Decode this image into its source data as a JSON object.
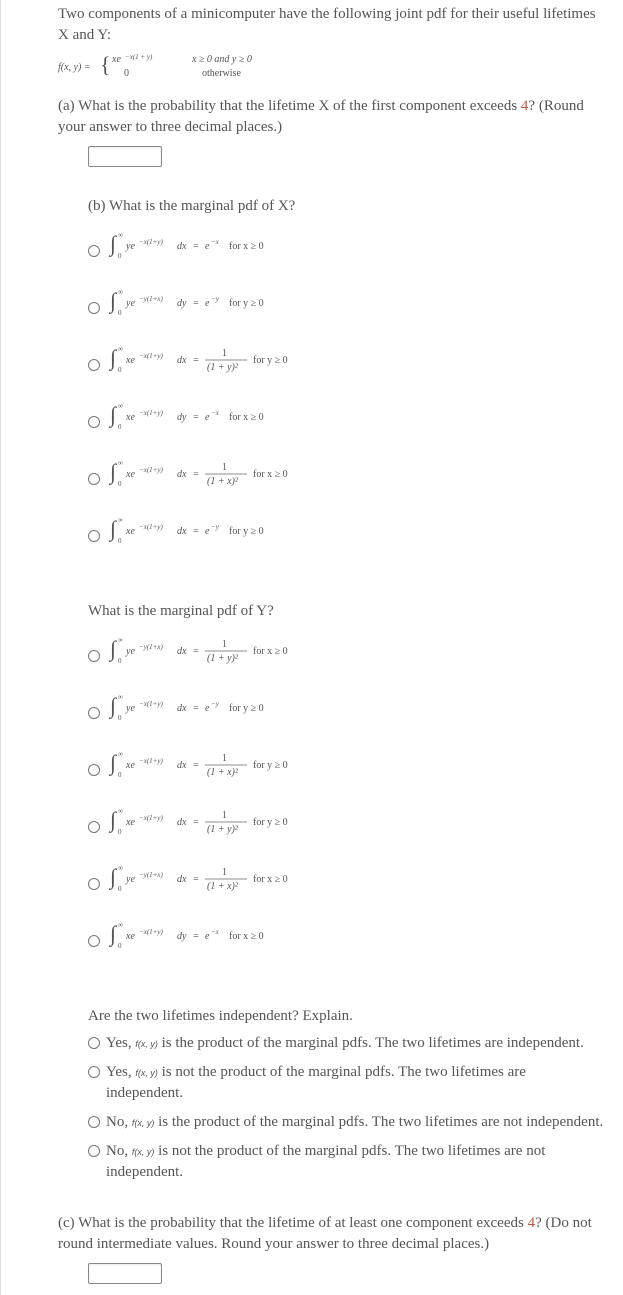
{
  "intro": "Two components of a minicomputer have the following joint pdf for their useful lifetimes X and Y:",
  "pdfdef_left": "f(x, y) = ",
  "pdfdef_top_left": "xe",
  "pdfdef_top_expo": "−x(1 + y)",
  "pdfdef_top_cond": "x ≥ 0 and y ≥ 0",
  "pdfdef_bot_left": "0",
  "pdfdef_bot_cond": "otherwise",
  "part_a_pre": "(a) What is the probability that the lifetime X of the first component exceeds ",
  "part_a_num": "4",
  "part_a_post": "? (Round your answer to three decimal places.)",
  "part_b_q": "(b) What is the marginal pdf of X?",
  "b_options": [
    {
      "integ": "ye",
      "exp": "−x(1+y)",
      "d": "dx",
      "rhs_num": null,
      "rhs_denB": null,
      "rhs_exp": "e−x",
      "cond": "for x ≥ 0"
    },
    {
      "integ": "ye",
      "exp": "−y(1+x)",
      "d": "dy",
      "rhs_num": null,
      "rhs_denB": null,
      "rhs_exp": "e−y",
      "cond": "for y ≥ 0"
    },
    {
      "integ": "xe",
      "exp": "−x(1+y)",
      "d": "dx",
      "rhs_num": "1",
      "rhs_denB": "(1 + y)²",
      "rhs_exp": null,
      "cond": "for y ≥ 0"
    },
    {
      "integ": "xe",
      "exp": "−x(1+y)",
      "d": "dy",
      "rhs_num": null,
      "rhs_denB": null,
      "rhs_exp": "e−x",
      "cond": "for x ≥ 0"
    },
    {
      "integ": "xe",
      "exp": "−x(1+y)",
      "d": "dx",
      "rhs_num": "1",
      "rhs_denB": "(1 + x)²",
      "rhs_exp": null,
      "cond": "for x ≥ 0"
    },
    {
      "integ": "xe",
      "exp": "−x(1+y)",
      "d": "dx",
      "rhs_num": null,
      "rhs_denB": null,
      "rhs_exp": "e−y",
      "cond": "for y ≥ 0"
    }
  ],
  "part_y_q": "What is the marginal pdf of Y?",
  "y_options": [
    {
      "integ": "ye",
      "exp": "−y(1+x)",
      "d": "dx",
      "rhs_num": "1",
      "rhs_denB": "(1 + y)²",
      "rhs_exp": null,
      "cond": "for x ≥ 0"
    },
    {
      "integ": "ye",
      "exp": "−x(1+y)",
      "d": "dx",
      "rhs_num": null,
      "rhs_denB": null,
      "rhs_exp": "e−y",
      "cond": "for y ≥ 0"
    },
    {
      "integ": "xe",
      "exp": "−x(1+y)",
      "d": "dx",
      "rhs_num": "1",
      "rhs_denB": "(1 + x)²",
      "rhs_exp": null,
      "cond": "for y ≥ 0"
    },
    {
      "integ": "xe",
      "exp": "−x(1+y)",
      "d": "dx",
      "rhs_num": "1",
      "rhs_denB": "(1 + y)²",
      "rhs_exp": null,
      "cond": "for y ≥ 0"
    },
    {
      "integ": "ye",
      "exp": "−y(1+x)",
      "d": "dx",
      "rhs_num": "1",
      "rhs_denB": "(1 + x)²",
      "rhs_exp": null,
      "cond": "for x ≥ 0"
    },
    {
      "integ": "xe",
      "exp": "−x(1+y)",
      "d": "dy",
      "rhs_num": null,
      "rhs_denB": null,
      "rhs_exp": "e−x",
      "cond": "for x ≥ 0"
    }
  ],
  "indep_q": "Are the two lifetimes independent? Explain.",
  "indep_options": [
    {
      "lead": "Yes, ",
      "fn": "f(x, y)",
      "tail": " is the product of the marginal pdfs. The two lifetimes are independent."
    },
    {
      "lead": "Yes, ",
      "fn": "f(x, y)",
      "tail": " is not the product of the marginal pdfs. The two lifetimes are independent."
    },
    {
      "lead": "No, ",
      "fn": "f(x, y)",
      "tail": " is the product of the marginal pdfs. The two lifetimes are not independent."
    },
    {
      "lead": "No, ",
      "fn": "f(x, y)",
      "tail": " is not the product of the marginal pdfs. The two lifetimes are not independent."
    }
  ],
  "part_c_pre": "(c) What is the probability that the lifetime of at least one component exceeds ",
  "part_c_num": "4",
  "part_c_post": "? (Do not round intermediate values. Round your answer to three decimal places.)",
  "svg": {
    "font_size_main": 10,
    "font_size_sup": 7,
    "text_color": "#555",
    "line_color": "#666",
    "highlight_color": "#c8553d"
  }
}
